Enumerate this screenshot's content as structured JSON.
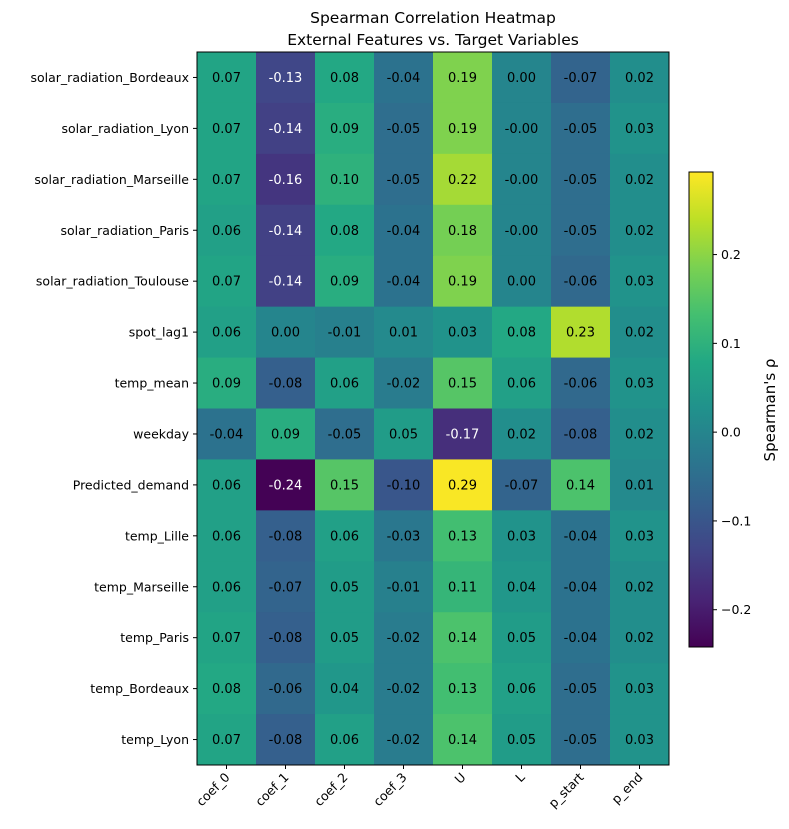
{
  "chart_data": {
    "type": "heatmap",
    "title": [
      "Spearman Correlation Heatmap",
      "External Features vs. Target Variables"
    ],
    "xlabel": "",
    "ylabel": "",
    "x_categories": [
      "coef_0",
      "coef_1",
      "coef_2",
      "coef_3",
      "U",
      "L",
      "p_start",
      "p_end"
    ],
    "y_categories": [
      "solar_radiation_Bordeaux",
      "solar_radiation_Lyon",
      "solar_radiation_Marseille",
      "solar_radiation_Paris",
      "solar_radiation_Toulouse",
      "spot_lag1",
      "temp_mean",
      "weekday",
      "Predicted_demand",
      "temp_Lille",
      "temp_Marseille",
      "temp_Paris",
      "temp_Bordeaux",
      "temp_Lyon"
    ],
    "values": [
      [
        0.07,
        -0.13,
        0.08,
        -0.04,
        0.19,
        0.0,
        -0.07,
        0.02
      ],
      [
        0.07,
        -0.14,
        0.09,
        -0.05,
        0.19,
        -0.0,
        -0.05,
        0.03
      ],
      [
        0.07,
        -0.16,
        0.1,
        -0.05,
        0.22,
        -0.0,
        -0.05,
        0.02
      ],
      [
        0.06,
        -0.14,
        0.08,
        -0.04,
        0.18,
        -0.0,
        -0.05,
        0.02
      ],
      [
        0.07,
        -0.14,
        0.09,
        -0.04,
        0.19,
        0.0,
        -0.06,
        0.03
      ],
      [
        0.06,
        0.0,
        -0.01,
        0.01,
        0.03,
        0.08,
        0.23,
        0.02
      ],
      [
        0.09,
        -0.08,
        0.06,
        -0.02,
        0.15,
        0.06,
        -0.06,
        0.03
      ],
      [
        -0.04,
        0.09,
        -0.05,
        0.05,
        -0.17,
        0.02,
        -0.08,
        0.02
      ],
      [
        0.06,
        -0.24,
        0.15,
        -0.1,
        0.29,
        -0.07,
        0.14,
        0.01
      ],
      [
        0.06,
        -0.08,
        0.06,
        -0.03,
        0.13,
        0.03,
        -0.04,
        0.03
      ],
      [
        0.06,
        -0.07,
        0.05,
        -0.01,
        0.11,
        0.04,
        -0.04,
        0.02
      ],
      [
        0.07,
        -0.08,
        0.05,
        -0.02,
        0.14,
        0.05,
        -0.04,
        0.02
      ],
      [
        0.08,
        -0.06,
        0.04,
        -0.02,
        0.13,
        0.06,
        -0.05,
        0.03
      ],
      [
        0.07,
        -0.08,
        0.06,
        -0.02,
        0.14,
        0.05,
        -0.05,
        0.03
      ]
    ],
    "value_labels": [
      [
        "0.07",
        "-0.13",
        "0.08",
        "-0.04",
        "0.19",
        "0.00",
        "-0.07",
        "0.02"
      ],
      [
        "0.07",
        "-0.14",
        "0.09",
        "-0.05",
        "0.19",
        "-0.00",
        "-0.05",
        "0.03"
      ],
      [
        "0.07",
        "-0.16",
        "0.10",
        "-0.05",
        "0.22",
        "-0.00",
        "-0.05",
        "0.02"
      ],
      [
        "0.06",
        "-0.14",
        "0.08",
        "-0.04",
        "0.18",
        "-0.00",
        "-0.05",
        "0.02"
      ],
      [
        "0.07",
        "-0.14",
        "0.09",
        "-0.04",
        "0.19",
        "0.00",
        "-0.06",
        "0.03"
      ],
      [
        "0.06",
        "0.00",
        "-0.01",
        "0.01",
        "0.03",
        "0.08",
        "0.23",
        "0.02"
      ],
      [
        "0.09",
        "-0.08",
        "0.06",
        "-0.02",
        "0.15",
        "0.06",
        "-0.06",
        "0.03"
      ],
      [
        "-0.04",
        "0.09",
        "-0.05",
        "0.05",
        "-0.17",
        "0.02",
        "-0.08",
        "0.02"
      ],
      [
        "0.06",
        "-0.24",
        "0.15",
        "-0.10",
        "0.29",
        "-0.07",
        "0.14",
        "0.01"
      ],
      [
        "0.06",
        "-0.08",
        "0.06",
        "-0.03",
        "0.13",
        "0.03",
        "-0.04",
        "0.03"
      ],
      [
        "0.06",
        "-0.07",
        "0.05",
        "-0.01",
        "0.11",
        "0.04",
        "-0.04",
        "0.02"
      ],
      [
        "0.07",
        "-0.08",
        "0.05",
        "-0.02",
        "0.14",
        "0.05",
        "-0.04",
        "0.02"
      ],
      [
        "0.08",
        "-0.06",
        "0.04",
        "-0.02",
        "0.13",
        "0.06",
        "-0.05",
        "0.03"
      ],
      [
        "0.07",
        "-0.08",
        "0.06",
        "-0.02",
        "0.14",
        "0.05",
        "-0.05",
        "0.03"
      ]
    ],
    "colormap": "viridis",
    "color_range": [
      -0.242,
      0.293
    ],
    "colorbar": {
      "label": "Spearman's ρ",
      "ticks": [
        -0.2,
        -0.1,
        0.0,
        0.1,
        0.2
      ],
      "tick_labels": [
        "−0.2",
        "−0.1",
        "0.0",
        "0.1",
        "0.2"
      ],
      "placement": "right"
    },
    "grid": false
  }
}
